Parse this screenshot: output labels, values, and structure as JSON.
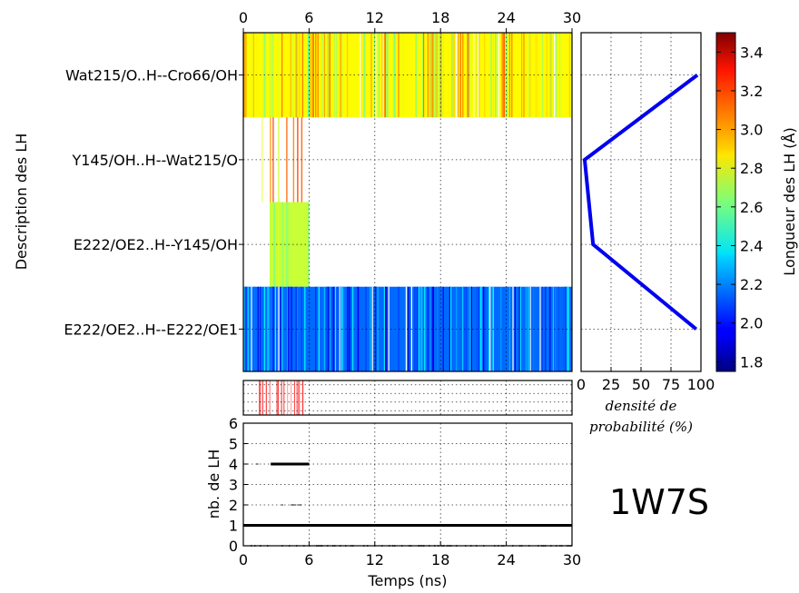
{
  "chart_data": [
    {
      "type": "heatmap",
      "xlim": [
        0,
        30
      ],
      "x_ticks": [
        "0",
        "6",
        "12",
        "18",
        "24",
        "30"
      ],
      "ylabel": "Description des LH",
      "rows": [
        {
          "label": "Wat215/O..H--Cro66/OH",
          "start": 0,
          "end": 30,
          "level": 2.85
        },
        {
          "label": "Y145/OH..H--Wat215/O",
          "start": 1.3,
          "end": 5.3,
          "level": 3.0
        },
        {
          "label": "E222/OE2..H--Y145/OH",
          "start": 2.4,
          "end": 6.0,
          "level": 2.75
        },
        {
          "label": "E222/OE2..H--E222/OE1",
          "start": 0,
          "end": 30,
          "level": 2.15
        }
      ],
      "grid": true
    },
    {
      "type": "line",
      "xlabel": "densité de probabilité (%)",
      "xlim": [
        0,
        100
      ],
      "x_ticks": [
        "0",
        "25",
        "50",
        "75",
        "100"
      ],
      "points": [
        {
          "row": "Wat215/O..H--Cro66/OH",
          "x": 97
        },
        {
          "row": "Y145/OH..H--Wat215/O",
          "x": 3
        },
        {
          "row": "E222/OE2..H--Y145/OH",
          "x": 10
        },
        {
          "row": "E222/OE2..H--E222/OE1",
          "x": 96
        }
      ],
      "color": "#0000ee",
      "grid": true
    },
    {
      "type": "heatmap",
      "xlim": [
        0,
        30
      ],
      "rows": 4,
      "events_start": 1.3,
      "events_end": 5.6,
      "color": "#ff0000",
      "grid": true
    },
    {
      "type": "scatter",
      "xlabel": "Temps (ns)",
      "ylabel": "nb. de LH",
      "xlim": [
        0,
        30
      ],
      "ylim": [
        0,
        6
      ],
      "x_ticks": [
        "0",
        "6",
        "12",
        "18",
        "24",
        "30"
      ],
      "y_ticks": [
        "0",
        "1",
        "2",
        "3",
        "4",
        "5",
        "6"
      ],
      "segments": [
        {
          "y": 1,
          "x0": 0,
          "x1": 30,
          "weight": "heavy"
        },
        {
          "y": 4,
          "x0": 2.5,
          "x1": 6,
          "weight": "heavy"
        },
        {
          "y": 0,
          "x0": 0,
          "x1": 30,
          "weight": "sparse"
        },
        {
          "y": 2,
          "x0": 3.5,
          "x1": 5.2,
          "weight": "sparse"
        }
      ],
      "grid": true
    }
  ],
  "colorbar": {
    "label": "Longueur des LH (Å)",
    "ticks": [
      "1.8",
      "2.0",
      "2.2",
      "2.4",
      "2.6",
      "2.8",
      "3.0",
      "3.2",
      "3.4"
    ],
    "range": [
      1.75,
      3.5
    ]
  },
  "pdb_code": "1W7S"
}
